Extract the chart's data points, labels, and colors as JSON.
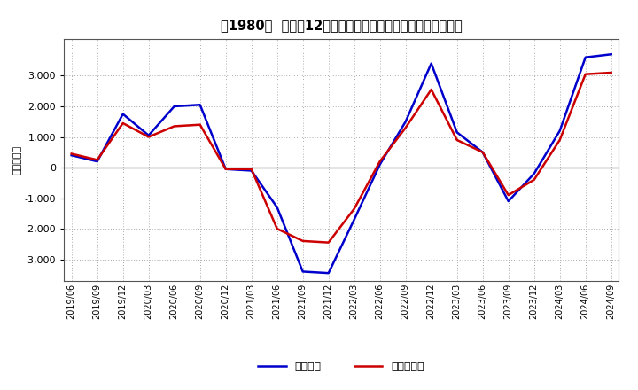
{
  "title": "［1980］  利益だ12か月移動合計の対前年同期増減額の推移",
  "ylabel": "（百万円）",
  "dates": [
    "2019/06",
    "2019/09",
    "2019/12",
    "2020/03",
    "2020/06",
    "2020/09",
    "2020/12",
    "2021/03",
    "2021/06",
    "2021/09",
    "2021/12",
    "2022/03",
    "2022/06",
    "2022/09",
    "2022/12",
    "2023/03",
    "2023/06",
    "2023/09",
    "2023/12",
    "2024/03",
    "2024/06",
    "2024/09"
  ],
  "keijo": [
    400,
    200,
    1750,
    1050,
    2000,
    2050,
    -50,
    -100,
    -1300,
    -3400,
    -3450,
    -1700,
    100,
    1500,
    3400,
    1150,
    500,
    -1100,
    -200,
    1200,
    3600,
    3700
  ],
  "junri": [
    450,
    250,
    1450,
    1000,
    1350,
    1400,
    -50,
    -50,
    -2000,
    -2400,
    -2450,
    -1350,
    200,
    1300,
    2550,
    900,
    500,
    -900,
    -400,
    900,
    3050,
    3100
  ],
  "keijo_color": "#0000cc",
  "junri_color": "#cc0000",
  "ylim": [
    -3700,
    4200
  ],
  "yticks": [
    -3000,
    -2000,
    -1000,
    0,
    1000,
    2000,
    3000
  ],
  "bg_color": "#ffffff",
  "grid_color": "#aaaaaa",
  "line_width": 1.8,
  "legend_keijo": "経常利益",
  "legend_junri": "当期純利益"
}
